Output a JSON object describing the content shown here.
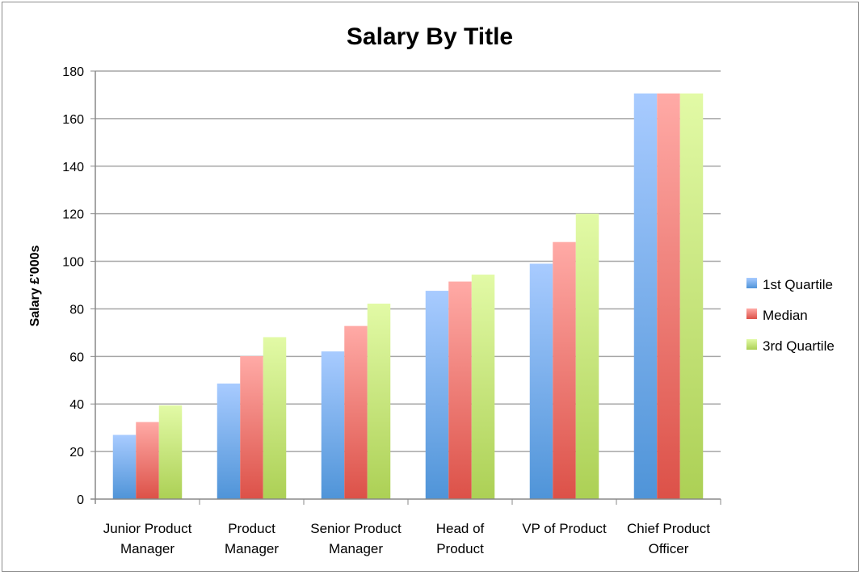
{
  "chart_data": {
    "type": "bar",
    "title": "Salary By Title",
    "xlabel": "",
    "ylabel": "Salary £'000s",
    "ylim": [
      0,
      180
    ],
    "yticks": [
      0,
      20,
      40,
      60,
      80,
      100,
      120,
      140,
      160,
      180
    ],
    "grid": true,
    "legend_position": "right",
    "categories": [
      [
        "Junior Product",
        "Manager"
      ],
      [
        "Product",
        "Manager"
      ],
      [
        "Senior Product",
        "Manager"
      ],
      [
        "Head of",
        "Product"
      ],
      [
        "VP of Product",
        ""
      ],
      [
        "Chief Product",
        "Officer"
      ]
    ],
    "series": [
      {
        "name": "1st Quartile",
        "color_top": "#a8cbff",
        "color_bottom": "#4f94d8",
        "values": [
          27,
          48.6,
          62.1,
          87.6,
          99,
          170.6
        ]
      },
      {
        "name": "Median",
        "color_top": "#ffaaa6",
        "color_bottom": "#dc5148",
        "values": [
          32.4,
          60.1,
          72.8,
          91.5,
          108.1,
          170.6
        ]
      },
      {
        "name": "3rd Quartile",
        "color_top": "#e2faa6",
        "color_bottom": "#acd055",
        "values": [
          39.4,
          68.1,
          82.2,
          94.4,
          120,
          170.6
        ]
      }
    ]
  }
}
